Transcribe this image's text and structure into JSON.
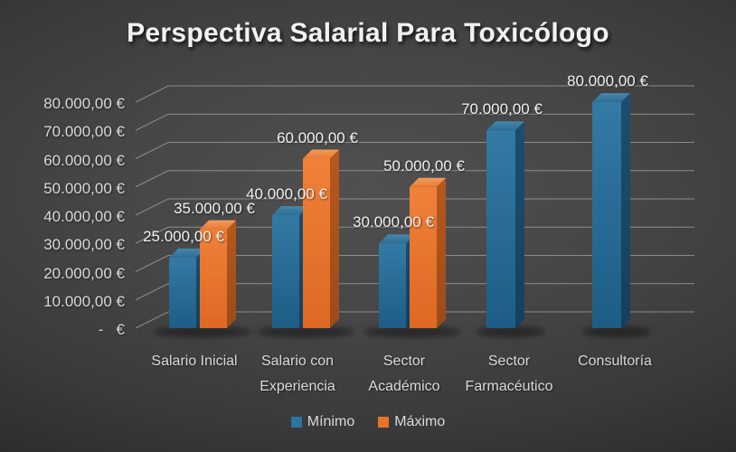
{
  "title": "Perspectiva Salarial Para Toxicólogo",
  "chart_data": {
    "type": "bar",
    "style": "3d-column",
    "title": "Perspectiva Salarial Para Toxicólogo",
    "categories": [
      "Salario Inicial",
      "Salario con\nExperiencia",
      "Sector\nAcadémico",
      "Sector\nFarmacéutico",
      "Consultoría"
    ],
    "series": [
      {
        "name": "Mínimo",
        "color": "#2e73a0",
        "values": [
          25000,
          40000,
          30000,
          70000,
          80000
        ],
        "labels": [
          "25.000,00 €",
          "40.000,00 €",
          "30.000,00 €",
          "70.000,00 €",
          "80.000,00 €"
        ]
      },
      {
        "name": "Máximo",
        "color": "#e9742e",
        "values": [
          35000,
          60000,
          50000,
          null,
          null
        ],
        "labels": [
          "35.000,00 €",
          "60.000,00 €",
          "50.000,00 €",
          null,
          null
        ]
      }
    ],
    "y_ticks": [
      {
        "value": 80000,
        "label": "80.000,00 €"
      },
      {
        "value": 70000,
        "label": "70.000,00 €"
      },
      {
        "value": 60000,
        "label": "60.000,00 €"
      },
      {
        "value": 50000,
        "label": "50.000,00 €"
      },
      {
        "value": 40000,
        "label": "40.000,00 €"
      },
      {
        "value": 30000,
        "label": "30.000,00 €"
      },
      {
        "value": 20000,
        "label": "20.000,00 €"
      },
      {
        "value": 10000,
        "label": "10.000,00 €"
      },
      {
        "value": 0,
        "label": "-   €"
      }
    ],
    "ylim": [
      0,
      80000
    ],
    "grid": true,
    "legend_position": "bottom"
  },
  "colors": {
    "background_center": "#4a4a4a",
    "background_edge": "#1c1c1c",
    "gridline": "#9d9d9d",
    "axis_text": "#d9d9d9",
    "data_label_text": "#f1f1f1",
    "title_text": "#f2f2f2",
    "min_front_top": "#337aa5",
    "min_front_bottom": "#1d5d85",
    "min_side": "#16405c",
    "min_top": "#4586ac",
    "max_front_top": "#ef8139",
    "max_front_bottom": "#dd6823",
    "max_side": "#9c4b18",
    "max_top": "#f49a5d"
  }
}
